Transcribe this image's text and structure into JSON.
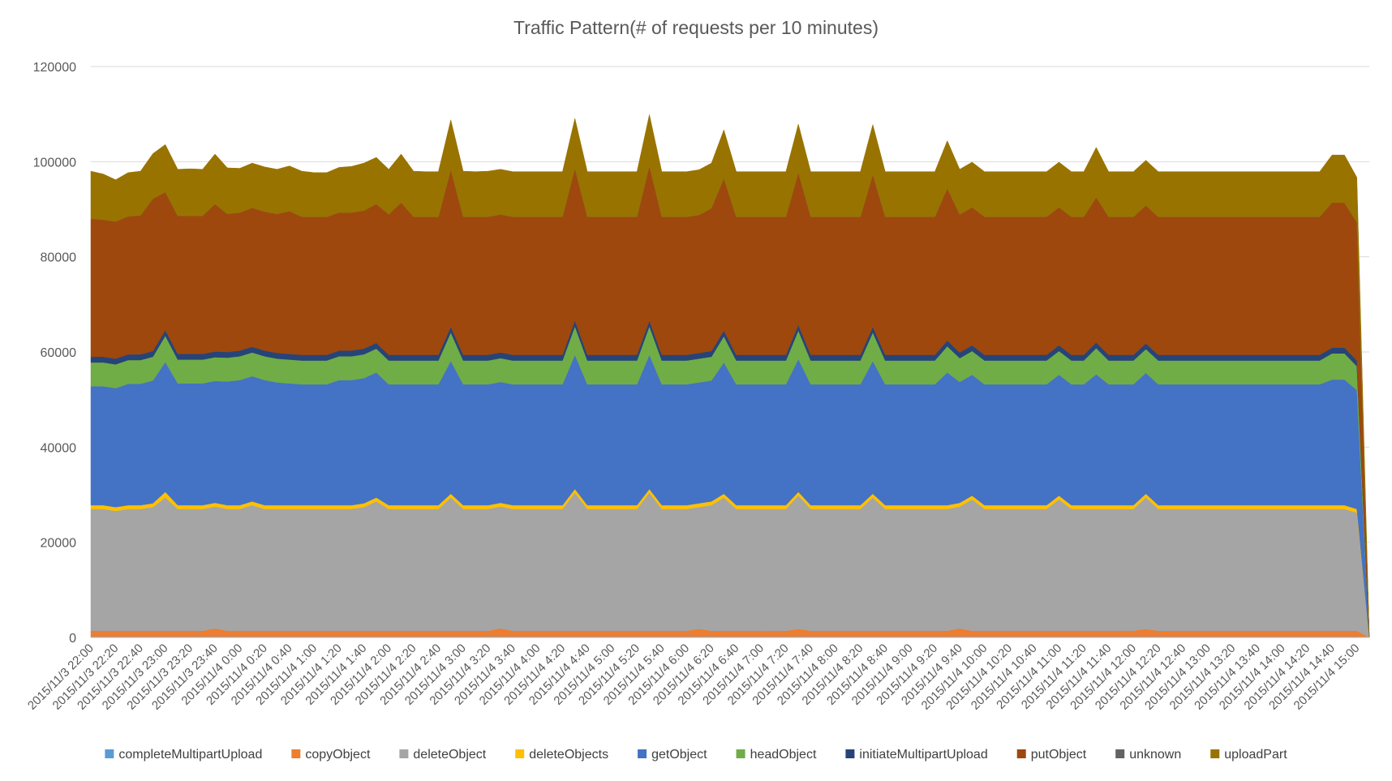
{
  "chart_data": {
    "type": "area",
    "stacked": true,
    "title": "Traffic Pattern(# of requests per 10 minutes)",
    "ylim": [
      0,
      120000
    ],
    "y_ticks": [
      0,
      20000,
      40000,
      60000,
      80000,
      100000,
      120000
    ],
    "grid": "horizontal",
    "legend_position": "bottom",
    "x_labels": [
      "2015/11/3 22:00",
      "2015/11/3 22:20",
      "2015/11/3 22:40",
      "2015/11/3 23:00",
      "2015/11/3 23:20",
      "2015/11/3 23:40",
      "2015/11/4 0:00",
      "2015/11/4 0:20",
      "2015/11/4 0:40",
      "2015/11/4 1:00",
      "2015/11/4 1:20",
      "2015/11/4 1:40",
      "2015/11/4 2:00",
      "2015/11/4 2:20",
      "2015/11/4 2:40",
      "2015/11/4 3:00",
      "2015/11/4 3:20",
      "2015/11/4 3:40",
      "2015/11/4 4:00",
      "2015/11/4 4:20",
      "2015/11/4 4:40",
      "2015/11/4 5:00",
      "2015/11/4 5:20",
      "2015/11/4 5:40",
      "2015/11/4 6:00",
      "2015/11/4 6:20",
      "2015/11/4 6:40",
      "2015/11/4 7:00",
      "2015/11/4 7:20",
      "2015/11/4 7:40",
      "2015/11/4 8:00",
      "2015/11/4 8:20",
      "2015/11/4 8:40",
      "2015/11/4 9:00",
      "2015/11/4 9:20",
      "2015/11/4 9:40",
      "2015/11/4 10:00",
      "2015/11/4 10:20",
      "2015/11/4 10:40",
      "2015/11/4 11:00",
      "2015/11/4 11:20",
      "2015/11/4 11:40",
      "2015/11/4 12:00",
      "2015/11/4 12:20",
      "2015/11/4 12:40",
      "2015/11/4 13:00",
      "2015/11/4 13:20",
      "2015/11/4 13:40",
      "2015/11/4 14:00",
      "2015/11/4 14:20",
      "2015/11/4 14:40",
      "2015/11/4 15:00"
    ],
    "x_label_every": 2,
    "series": [
      {
        "name": "completeMultipartUpload",
        "color": "#5B9BD5",
        "values": [
          200,
          200,
          200,
          200,
          200,
          200,
          200,
          200,
          200,
          200,
          200,
          200,
          200,
          200,
          200,
          200,
          200,
          200,
          200,
          200,
          200,
          200,
          200,
          200,
          200,
          200,
          200,
          200,
          200,
          200,
          200,
          200,
          200,
          200,
          200,
          200,
          200,
          200,
          200,
          200,
          200,
          200,
          200,
          200,
          200,
          200,
          200,
          200,
          200,
          200,
          200,
          200,
          200,
          200,
          200,
          200,
          200,
          200,
          200,
          200,
          200,
          200,
          200,
          200,
          200,
          200,
          200,
          200,
          200,
          200,
          200,
          200,
          200,
          200,
          200,
          200,
          200,
          200,
          200,
          200,
          200,
          200,
          200,
          200,
          200,
          200,
          200,
          200,
          200,
          200,
          200,
          200,
          200,
          200,
          200,
          200,
          200,
          200,
          200,
          200,
          200,
          200,
          200,
          0
        ]
      },
      {
        "name": "copyObject",
        "color": "#ED7D31",
        "values": [
          1200,
          1200,
          1200,
          1200,
          1200,
          1200,
          1200,
          1200,
          1200,
          1200,
          1700,
          1200,
          1200,
          1200,
          1200,
          1200,
          1200,
          1200,
          1200,
          1200,
          1200,
          1200,
          1200,
          1200,
          1200,
          1200,
          1200,
          1200,
          1200,
          1200,
          1200,
          1200,
          1200,
          1700,
          1200,
          1200,
          1200,
          1200,
          1200,
          1200,
          1200,
          1200,
          1200,
          1200,
          1200,
          1200,
          1200,
          1200,
          1200,
          1600,
          1200,
          1200,
          1200,
          1200,
          1200,
          1200,
          1200,
          1600,
          1200,
          1200,
          1200,
          1200,
          1200,
          1200,
          1200,
          1200,
          1200,
          1200,
          1200,
          1200,
          1700,
          1200,
          1200,
          1200,
          1200,
          1200,
          1200,
          1200,
          1200,
          1200,
          1200,
          1200,
          1200,
          1200,
          1200,
          1600,
          1200,
          1200,
          1200,
          1200,
          1200,
          1200,
          1200,
          1200,
          1200,
          1200,
          1200,
          1200,
          1200,
          1200,
          1200,
          1200,
          1200,
          0
        ]
      },
      {
        "name": "deleteObject",
        "color": "#A5A5A5",
        "values": [
          25600,
          25600,
          25200,
          25600,
          25600,
          26000,
          28000,
          25600,
          25600,
          25600,
          25600,
          25600,
          25600,
          26400,
          25600,
          25600,
          25600,
          25600,
          25600,
          25600,
          25600,
          25600,
          26000,
          27200,
          25600,
          25600,
          25600,
          25600,
          25600,
          28000,
          25600,
          25600,
          25600,
          25600,
          25600,
          25600,
          25600,
          25600,
          25600,
          29000,
          25600,
          25600,
          25600,
          25600,
          25600,
          29000,
          25600,
          25600,
          25600,
          25600,
          26400,
          28000,
          25600,
          25600,
          25600,
          25600,
          25600,
          28000,
          25600,
          25600,
          25600,
          25600,
          25600,
          28000,
          25600,
          25600,
          25600,
          25600,
          25600,
          25600,
          25600,
          27600,
          25600,
          25600,
          25600,
          25600,
          25600,
          25600,
          27600,
          25600,
          25600,
          25600,
          25600,
          25600,
          25600,
          27600,
          25600,
          25600,
          25600,
          25600,
          25600,
          25600,
          25600,
          25600,
          25600,
          25600,
          25600,
          25600,
          25600,
          25600,
          25600,
          25600,
          24800,
          0
        ]
      },
      {
        "name": "deleteObjects",
        "color": "#FFC000",
        "values": [
          800,
          800,
          800,
          800,
          800,
          800,
          1200,
          800,
          800,
          800,
          800,
          800,
          800,
          800,
          800,
          800,
          800,
          800,
          800,
          800,
          800,
          800,
          800,
          800,
          800,
          800,
          800,
          800,
          800,
          800,
          800,
          800,
          800,
          800,
          800,
          800,
          800,
          800,
          800,
          800,
          800,
          800,
          800,
          800,
          800,
          800,
          800,
          800,
          800,
          800,
          800,
          800,
          800,
          800,
          800,
          800,
          800,
          800,
          800,
          800,
          800,
          800,
          800,
          800,
          800,
          800,
          800,
          800,
          800,
          800,
          800,
          800,
          800,
          800,
          800,
          800,
          800,
          800,
          800,
          800,
          800,
          800,
          800,
          800,
          800,
          800,
          800,
          800,
          800,
          800,
          800,
          800,
          800,
          800,
          800,
          800,
          800,
          800,
          800,
          800,
          800,
          800,
          800,
          0
        ]
      },
      {
        "name": "getObject",
        "color": "#4472C4",
        "values": [
          25000,
          25000,
          25000,
          25500,
          25500,
          25800,
          27300,
          25600,
          25600,
          25600,
          25600,
          26000,
          26300,
          26300,
          26300,
          25800,
          25600,
          25400,
          25400,
          25400,
          26300,
          26300,
          26300,
          26300,
          25400,
          25400,
          25400,
          25400,
          25400,
          27900,
          25400,
          25400,
          25400,
          25400,
          25400,
          25400,
          25400,
          25400,
          25400,
          28200,
          25400,
          25400,
          25400,
          25400,
          25400,
          28200,
          25400,
          25400,
          25400,
          25400,
          25400,
          27600,
          25400,
          25400,
          25400,
          25400,
          25400,
          27900,
          25400,
          25400,
          25400,
          25400,
          25400,
          27900,
          25400,
          25400,
          25400,
          25400,
          25400,
          27900,
          25400,
          25400,
          25400,
          25400,
          25400,
          25400,
          25400,
          25400,
          25400,
          25400,
          25400,
          27500,
          25400,
          25400,
          25400,
          25400,
          25400,
          25400,
          25400,
          25400,
          25400,
          25400,
          25400,
          25400,
          25400,
          25400,
          25400,
          25400,
          25400,
          25400,
          26400,
          26400,
          25000,
          0
        ]
      },
      {
        "name": "headObject",
        "color": "#70AD47",
        "values": [
          5000,
          5000,
          5000,
          5000,
          5000,
          5000,
          5500,
          5000,
          5000,
          5000,
          5000,
          5000,
          5000,
          5000,
          5000,
          5000,
          5000,
          5000,
          5000,
          5000,
          5000,
          5000,
          5000,
          5000,
          5000,
          5000,
          5000,
          5000,
          5000,
          6000,
          5000,
          5000,
          5000,
          5000,
          5000,
          5000,
          5000,
          5000,
          5000,
          6000,
          5000,
          5000,
          5000,
          5000,
          5000,
          6000,
          5000,
          5000,
          5000,
          5000,
          5000,
          5500,
          5000,
          5000,
          5000,
          5000,
          5000,
          6000,
          5000,
          5000,
          5000,
          5000,
          5000,
          6000,
          5000,
          5000,
          5000,
          5000,
          5000,
          5500,
          5000,
          5000,
          5000,
          5000,
          5000,
          5000,
          5000,
          5000,
          5000,
          5000,
          5000,
          5500,
          5000,
          5000,
          5000,
          5000,
          5000,
          5000,
          5000,
          5000,
          5000,
          5000,
          5000,
          5000,
          5000,
          5000,
          5000,
          5000,
          5000,
          5000,
          5500,
          5500,
          5000,
          0
        ]
      },
      {
        "name": "initiateMultipartUpload",
        "color": "#264478",
        "values": [
          1200,
          1200,
          1200,
          1200,
          1200,
          1200,
          1200,
          1200,
          1200,
          1200,
          1200,
          1200,
          1200,
          1200,
          1200,
          1200,
          1200,
          1200,
          1200,
          1200,
          1200,
          1200,
          1200,
          1200,
          1200,
          1200,
          1200,
          1200,
          1200,
          1200,
          1200,
          1200,
          1200,
          1200,
          1200,
          1200,
          1200,
          1200,
          1200,
          1200,
          1200,
          1200,
          1200,
          1200,
          1200,
          1200,
          1200,
          1200,
          1200,
          1200,
          1200,
          1200,
          1200,
          1200,
          1200,
          1200,
          1200,
          1200,
          1200,
          1200,
          1200,
          1200,
          1200,
          1200,
          1200,
          1200,
          1200,
          1200,
          1200,
          1200,
          1200,
          1200,
          1200,
          1200,
          1200,
          1200,
          1200,
          1200,
          1200,
          1200,
          1200,
          1200,
          1200,
          1200,
          1200,
          1200,
          1200,
          1200,
          1200,
          1200,
          1200,
          1200,
          1200,
          1200,
          1200,
          1200,
          1200,
          1200,
          1200,
          1200,
          1200,
          1200,
          1200,
          0
        ]
      },
      {
        "name": "putObject",
        "color": "#9E480E",
        "values": [
          29000,
          28800,
          28800,
          29000,
          29200,
          32000,
          29000,
          29000,
          29000,
          29000,
          31000,
          29000,
          29000,
          29200,
          29200,
          29200,
          30000,
          29000,
          29000,
          29000,
          29000,
          29000,
          29000,
          29200,
          29500,
          32000,
          29000,
          29000,
          29000,
          33000,
          29000,
          29000,
          29000,
          29000,
          29000,
          29000,
          29000,
          29000,
          29000,
          32000,
          29000,
          29000,
          29000,
          29000,
          29000,
          32500,
          29000,
          29000,
          29000,
          29000,
          30000,
          32000,
          29000,
          29000,
          29000,
          29000,
          29000,
          32000,
          29000,
          29000,
          29000,
          29000,
          29000,
          32000,
          29000,
          29000,
          29000,
          29000,
          29000,
          32000,
          29000,
          29000,
          29000,
          29000,
          29000,
          29000,
          29000,
          29000,
          29000,
          29000,
          29000,
          30500,
          29000,
          29000,
          29000,
          29000,
          29000,
          29000,
          29000,
          29000,
          29000,
          29000,
          29000,
          29000,
          29000,
          29000,
          29000,
          29000,
          29000,
          29000,
          30500,
          30500,
          29000,
          0
        ]
      },
      {
        "name": "unknown",
        "color": "#636363",
        "values": [
          0,
          0,
          0,
          0,
          0,
          0,
          0,
          0,
          0,
          0,
          0,
          0,
          0,
          0,
          0,
          0,
          0,
          0,
          0,
          0,
          0,
          0,
          0,
          0,
          0,
          0,
          0,
          0,
          0,
          0,
          0,
          0,
          0,
          0,
          0,
          0,
          0,
          0,
          0,
          0,
          0,
          0,
          0,
          0,
          0,
          0,
          0,
          0,
          0,
          0,
          0,
          0,
          0,
          0,
          0,
          0,
          0,
          0,
          0,
          0,
          0,
          0,
          0,
          0,
          0,
          0,
          0,
          0,
          0,
          0,
          0,
          0,
          0,
          0,
          0,
          0,
          0,
          0,
          0,
          0,
          0,
          0,
          0,
          0,
          0,
          0,
          0,
          0,
          0,
          0,
          0,
          0,
          0,
          0,
          0,
          0,
          0,
          0,
          0,
          0,
          0,
          0,
          0,
          0
        ]
      },
      {
        "name": "uploadPart",
        "color": "#997300",
        "values": [
          10000,
          9600,
          8800,
          9200,
          9300,
          9500,
          10000,
          9800,
          9900,
          9800,
          10500,
          9700,
          9300,
          9400,
          9400,
          9400,
          9500,
          9600,
          9300,
          9300,
          9500,
          9700,
          10000,
          9800,
          9500,
          10200,
          9600,
          9500,
          9500,
          10500,
          9600,
          9500,
          9600,
          9500,
          9500,
          9500,
          9500,
          9500,
          9500,
          10500,
          9500,
          9500,
          9500,
          9500,
          9500,
          10800,
          9500,
          9500,
          9500,
          9500,
          9500,
          10200,
          9500,
          9500,
          9500,
          9500,
          9500,
          10200,
          9500,
          9500,
          9500,
          9500,
          9500,
          10500,
          9500,
          9500,
          9500,
          9500,
          9500,
          10000,
          9500,
          9500,
          9500,
          9500,
          9500,
          9500,
          9500,
          9500,
          9500,
          9500,
          9500,
          10500,
          9500,
          9500,
          9500,
          9500,
          9500,
          9500,
          9500,
          9500,
          9500,
          9500,
          9500,
          9500,
          9500,
          9500,
          9500,
          9500,
          9500,
          9500,
          10000,
          10000,
          9500,
          0
        ]
      }
    ]
  }
}
